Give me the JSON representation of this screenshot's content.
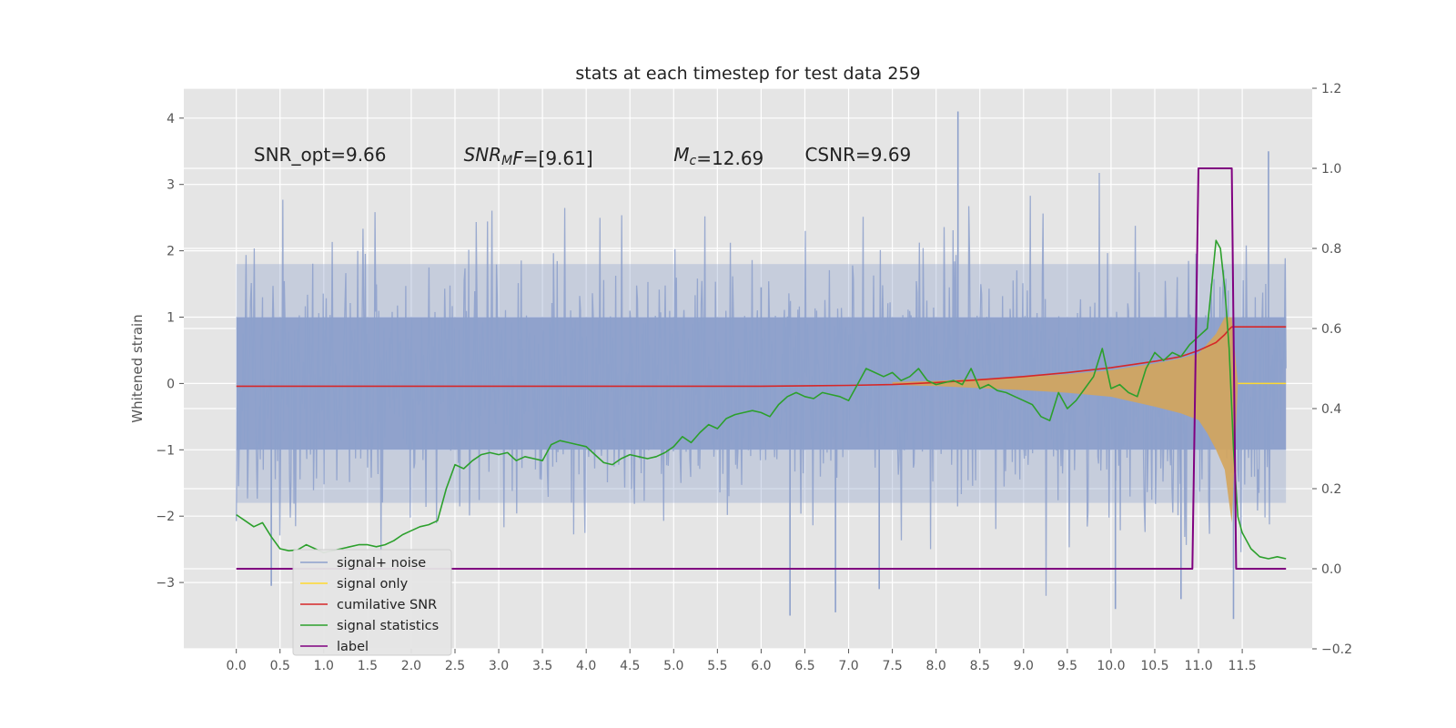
{
  "chart_data": {
    "type": "line",
    "title": "stats at each timestep for test data 259",
    "ylabel": "Whitened strain",
    "y2label": "",
    "xlim": [
      -0.6,
      12.3
    ],
    "ylim": [
      -4.0,
      4.45
    ],
    "y2lim": [
      -0.2,
      1.2
    ],
    "grid": true,
    "legend_placement": "lower-left",
    "x_ticks": [
      "0.0",
      "0.5",
      "1.0",
      "1.5",
      "2.0",
      "2.5",
      "3.0",
      "3.5",
      "4.0",
      "4.5",
      "5.0",
      "5.5",
      "6.0",
      "6.5",
      "7.0",
      "7.5",
      "8.0",
      "8.5",
      "9.0",
      "9.5",
      "10.0",
      "10.5",
      "11.0",
      "11.5"
    ],
    "y_ticks": [
      "4",
      "3",
      "2",
      "1",
      "0",
      "−1",
      "−2",
      "−3"
    ],
    "y2_ticks": [
      "1.2",
      "1.0",
      "0.8",
      "0.6",
      "0.4",
      "0.2",
      "0.0",
      "−0.2"
    ],
    "annotations": [
      {
        "x": 0.2,
        "y": 3.35,
        "parts": [
          {
            "text": "SNR_opt=9.66",
            "italic": false
          }
        ]
      },
      {
        "x": 2.6,
        "y": 3.35,
        "parts": [
          {
            "text": "SNR",
            "italic": true
          },
          {
            "text": "M",
            "italic": true,
            "sub": true
          },
          {
            "text": "F",
            "italic": true
          },
          {
            "text": "=[9.61]",
            "italic": false
          }
        ]
      },
      {
        "x": 5.0,
        "y": 3.35,
        "parts": [
          {
            "text": "M",
            "italic": true
          },
          {
            "text": "c",
            "italic": true,
            "sub": true
          },
          {
            "text": "=12.69",
            "italic": false
          }
        ]
      },
      {
        "x": 6.5,
        "y": 3.35,
        "parts": [
          {
            "text": "CSNR=9.69",
            "italic": false
          }
        ]
      }
    ],
    "legend": [
      {
        "name": "signal+ noise",
        "color": "#8da0cb"
      },
      {
        "name": "signal only",
        "color": "#ffd92f"
      },
      {
        "name": "cumilative SNR",
        "color": "#d62728"
      },
      {
        "name": "signal statistics",
        "color": "#2ca02c"
      },
      {
        "name": "label",
        "color": "#800080"
      }
    ],
    "hidden_legend_text": "cumilative SNR",
    "series": [
      {
        "name": "signal+ noise",
        "axis": "left",
        "style": "noise",
        "color": "#8da0cb",
        "x_range": [
          0.0,
          12.0
        ],
        "typical_band": [
          -1.8,
          1.8
        ],
        "spikes": [
          {
            "x": 0.4,
            "y": -3.05
          },
          {
            "x": 6.0,
            "y": 1.45
          },
          {
            "x": 6.33,
            "y": -3.5
          },
          {
            "x": 6.85,
            "y": -3.45
          },
          {
            "x": 7.35,
            "y": -3.1
          },
          {
            "x": 8.25,
            "y": 4.1
          },
          {
            "x": 10.05,
            "y": -3.4
          },
          {
            "x": 10.8,
            "y": -3.25
          },
          {
            "x": 11.4,
            "y": -3.55
          },
          {
            "x": 11.8,
            "y": 3.5
          }
        ]
      },
      {
        "name": "signal only",
        "axis": "left",
        "style": "chirp",
        "color": "#ffd92f",
        "fill_color": "#d4a55b",
        "x": [
          7.5,
          8.0,
          8.5,
          9.0,
          9.5,
          10.0,
          10.5,
          10.8,
          11.0,
          11.1,
          11.2,
          11.3,
          11.38,
          11.45
        ],
        "envelope": [
          0.02,
          0.04,
          0.07,
          0.1,
          0.14,
          0.2,
          0.3,
          0.38,
          0.45,
          0.6,
          0.75,
          1.0,
          1.0,
          0.0
        ],
        "lower_envelope": [
          0.02,
          0.04,
          0.07,
          0.1,
          0.14,
          0.2,
          0.35,
          0.45,
          0.55,
          0.75,
          1.0,
          1.3,
          2.1,
          0.0
        ]
      },
      {
        "name": "cumilative SNR",
        "axis": "right",
        "color": "#d62728",
        "x": [
          0.0,
          6.0,
          7.0,
          7.5,
          8.0,
          8.5,
          9.0,
          9.5,
          10.0,
          10.5,
          10.8,
          11.0,
          11.1,
          11.2,
          11.3,
          11.35,
          11.38,
          12.0
        ],
        "y": [
          0.456,
          0.456,
          0.458,
          0.46,
          0.465,
          0.472,
          0.48,
          0.49,
          0.502,
          0.518,
          0.53,
          0.545,
          0.555,
          0.565,
          0.585,
          0.598,
          0.604,
          0.604
        ]
      },
      {
        "name": "signal statistics",
        "axis": "right",
        "color": "#2ca02c",
        "x": [
          0.0,
          0.1,
          0.2,
          0.3,
          0.4,
          0.5,
          0.6,
          0.7,
          0.8,
          0.9,
          1.0,
          1.1,
          1.2,
          1.3,
          1.4,
          1.5,
          1.6,
          1.7,
          1.8,
          1.9,
          2.0,
          2.1,
          2.2,
          2.3,
          2.4,
          2.5,
          2.6,
          2.7,
          2.8,
          2.9,
          3.0,
          3.1,
          3.2,
          3.3,
          3.4,
          3.5,
          3.6,
          3.7,
          3.8,
          3.9,
          4.0,
          4.1,
          4.2,
          4.3,
          4.4,
          4.5,
          4.6,
          4.7,
          4.8,
          4.9,
          5.0,
          5.1,
          5.2,
          5.3,
          5.4,
          5.5,
          5.6,
          5.7,
          5.8,
          5.9,
          6.0,
          6.1,
          6.2,
          6.3,
          6.4,
          6.5,
          6.6,
          6.7,
          6.8,
          6.9,
          7.0,
          7.1,
          7.2,
          7.3,
          7.4,
          7.5,
          7.6,
          7.7,
          7.8,
          7.9,
          8.0,
          8.1,
          8.2,
          8.3,
          8.4,
          8.5,
          8.6,
          8.7,
          8.8,
          8.9,
          9.0,
          9.1,
          9.2,
          9.3,
          9.4,
          9.5,
          9.6,
          9.7,
          9.8,
          9.9,
          10.0,
          10.1,
          10.2,
          10.3,
          10.4,
          10.5,
          10.6,
          10.7,
          10.8,
          10.9,
          11.0,
          11.1,
          11.2,
          11.25,
          11.3,
          11.35,
          11.4,
          11.45,
          11.5,
          11.6,
          11.7,
          11.8,
          11.9,
          12.0
        ],
        "y": [
          0.135,
          0.12,
          0.105,
          0.115,
          0.08,
          0.05,
          0.045,
          0.047,
          0.06,
          0.05,
          0.04,
          0.045,
          0.05,
          0.055,
          0.06,
          0.06,
          0.055,
          0.06,
          0.07,
          0.085,
          0.095,
          0.105,
          0.11,
          0.12,
          0.2,
          0.26,
          0.25,
          0.27,
          0.285,
          0.29,
          0.285,
          0.29,
          0.27,
          0.28,
          0.275,
          0.27,
          0.31,
          0.32,
          0.315,
          0.31,
          0.305,
          0.285,
          0.265,
          0.26,
          0.275,
          0.285,
          0.28,
          0.275,
          0.28,
          0.29,
          0.305,
          0.33,
          0.315,
          0.34,
          0.36,
          0.35,
          0.375,
          0.385,
          0.39,
          0.395,
          0.39,
          0.38,
          0.41,
          0.43,
          0.44,
          0.43,
          0.425,
          0.44,
          0.435,
          0.43,
          0.42,
          0.46,
          0.5,
          0.49,
          0.48,
          0.49,
          0.47,
          0.48,
          0.5,
          0.47,
          0.46,
          0.465,
          0.47,
          0.46,
          0.5,
          0.45,
          0.46,
          0.445,
          0.44,
          0.43,
          0.42,
          0.41,
          0.38,
          0.37,
          0.44,
          0.4,
          0.42,
          0.45,
          0.48,
          0.55,
          0.45,
          0.46,
          0.44,
          0.43,
          0.5,
          0.54,
          0.52,
          0.54,
          0.53,
          0.56,
          0.58,
          0.6,
          0.82,
          0.8,
          0.7,
          0.55,
          0.3,
          0.13,
          0.09,
          0.05,
          0.03,
          0.025,
          0.03,
          0.025
        ]
      },
      {
        "name": "label",
        "axis": "right",
        "color": "#800080",
        "x": [
          0.0,
          10.93,
          11.0,
          11.38,
          11.43,
          12.0
        ],
        "y": [
          0.0,
          0.0,
          1.0,
          1.0,
          0.0,
          0.0
        ]
      }
    ]
  }
}
